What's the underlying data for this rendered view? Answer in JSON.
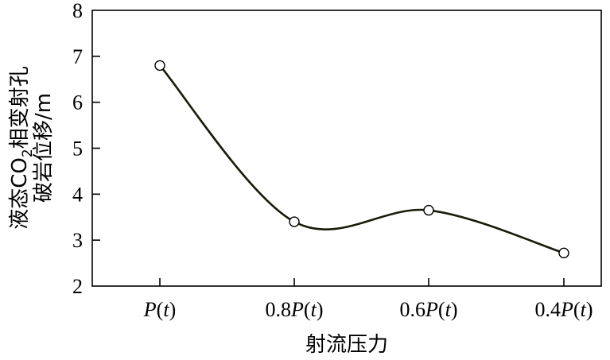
{
  "chart_data": {
    "type": "line",
    "categories": [
      "P(t)",
      "0.8P(t)",
      "0.6P(t)",
      "0.4P(t)"
    ],
    "category_parts": [
      {
        "prefix": "",
        "var": "P",
        "open": "(",
        "t": "t",
        "close": ")"
      },
      {
        "prefix": "0.8",
        "var": "P",
        "open": "(",
        "t": "t",
        "close": ")"
      },
      {
        "prefix": "0.6",
        "var": "P",
        "open": "(",
        "t": "t",
        "close": ")"
      },
      {
        "prefix": "0.4",
        "var": "P",
        "open": "(",
        "t": "t",
        "close": ")"
      }
    ],
    "values": [
      6.8,
      3.4,
      3.65,
      2.72
    ],
    "ylim": [
      2,
      8
    ],
    "yticks": [
      2,
      3,
      4,
      5,
      6,
      7,
      8
    ],
    "xlabel": "射流压力",
    "ylabel_line1_a": "液态CO",
    "ylabel_line1_sub": "2",
    "ylabel_line1_b": "相变射孔",
    "ylabel_line2": "破岩位移/m",
    "grid": false,
    "line_color": "#1a1a0a",
    "marker": "open-circle"
  }
}
